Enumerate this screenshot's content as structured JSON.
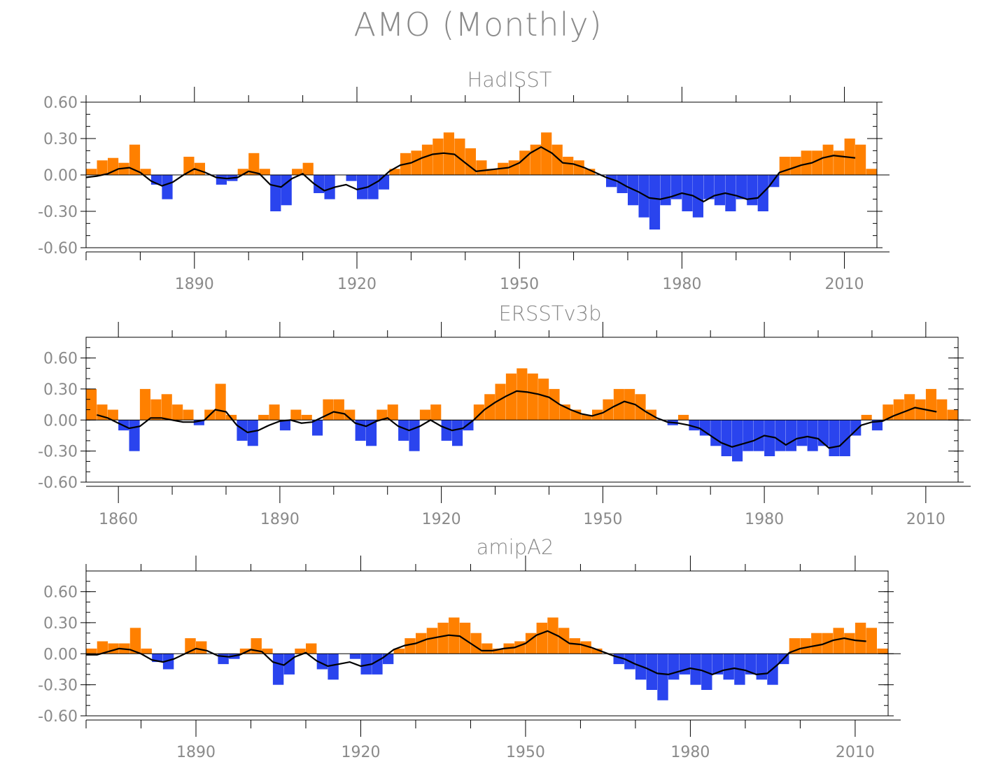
{
  "title": "AMO (Monthly)",
  "colors": {
    "positive": "#ff8000",
    "negative": "#2a44ee",
    "smooth": "#000000",
    "frame": "#000000",
    "text": "#8a8a8a"
  },
  "chart_data": [
    {
      "type": "bar",
      "title": "HadISST",
      "xlim": [
        1870,
        2016
      ],
      "ylim": [
        -0.6,
        0.6
      ],
      "yticks": [
        "0.60",
        "0.30",
        "0.00",
        "-0.30",
        "-0.60"
      ],
      "xticks": [
        "1890",
        "1920",
        "1950",
        "1980",
        "2010"
      ],
      "xtick_years": [
        1890,
        1920,
        1950,
        1980,
        2010
      ],
      "bar_series": {
        "name": "monthly AMO anomaly",
        "x": [
          1870,
          1872,
          1874,
          1876,
          1878,
          1880,
          1882,
          1884,
          1886,
          1888,
          1890,
          1892,
          1894,
          1896,
          1898,
          1900,
          1902,
          1904,
          1906,
          1908,
          1910,
          1912,
          1914,
          1916,
          1918,
          1920,
          1922,
          1924,
          1926,
          1928,
          1930,
          1932,
          1934,
          1936,
          1938,
          1940,
          1942,
          1944,
          1946,
          1948,
          1950,
          1952,
          1954,
          1956,
          1958,
          1960,
          1962,
          1964,
          1966,
          1968,
          1970,
          1972,
          1974,
          1976,
          1978,
          1980,
          1982,
          1984,
          1986,
          1988,
          1990,
          1992,
          1994,
          1996,
          1998,
          2000,
          2002,
          2004,
          2006,
          2008,
          2010,
          2012,
          2014
        ],
        "y": [
          0.05,
          0.12,
          0.14,
          0.1,
          0.25,
          0.05,
          -0.08,
          -0.2,
          0.0,
          0.15,
          0.1,
          0.0,
          -0.08,
          -0.05,
          0.05,
          0.18,
          0.05,
          -0.3,
          -0.25,
          0.05,
          0.1,
          -0.15,
          -0.2,
          0.0,
          -0.05,
          -0.2,
          -0.2,
          -0.12,
          0.05,
          0.18,
          0.2,
          0.25,
          0.3,
          0.35,
          0.3,
          0.22,
          0.12,
          0.05,
          0.1,
          0.12,
          0.2,
          0.25,
          0.35,
          0.25,
          0.15,
          0.12,
          0.05,
          0.0,
          -0.1,
          -0.15,
          -0.25,
          -0.35,
          -0.45,
          -0.25,
          -0.2,
          -0.3,
          -0.35,
          -0.2,
          -0.25,
          -0.3,
          -0.2,
          -0.25,
          -0.3,
          -0.1,
          0.15,
          0.15,
          0.2,
          0.2,
          0.25,
          0.2,
          0.3,
          0.25,
          0.05
        ]
      },
      "smooth_series": {
        "name": "smoothed",
        "x": [
          1870,
          1872,
          1874,
          1876,
          1878,
          1880,
          1882,
          1884,
          1886,
          1888,
          1890,
          1892,
          1894,
          1896,
          1898,
          1900,
          1902,
          1904,
          1906,
          1908,
          1910,
          1912,
          1914,
          1916,
          1918,
          1920,
          1922,
          1924,
          1926,
          1928,
          1930,
          1932,
          1934,
          1936,
          1938,
          1940,
          1942,
          1944,
          1946,
          1948,
          1950,
          1952,
          1954,
          1956,
          1958,
          1960,
          1962,
          1964,
          1966,
          1968,
          1970,
          1972,
          1974,
          1976,
          1978,
          1980,
          1982,
          1984,
          1986,
          1988,
          1990,
          1992,
          1994,
          1996,
          1998,
          2000,
          2002,
          2004,
          2006,
          2008,
          2010,
          2012
        ],
        "y": [
          -0.02,
          -0.01,
          0.01,
          0.05,
          0.06,
          0.02,
          -0.05,
          -0.09,
          -0.06,
          0.0,
          0.05,
          0.02,
          -0.02,
          -0.03,
          -0.02,
          0.03,
          0.01,
          -0.08,
          -0.1,
          -0.03,
          0.01,
          -0.07,
          -0.13,
          -0.1,
          -0.08,
          -0.12,
          -0.1,
          -0.05,
          0.03,
          0.08,
          0.1,
          0.14,
          0.17,
          0.18,
          0.17,
          0.1,
          0.03,
          0.04,
          0.05,
          0.06,
          0.1,
          0.18,
          0.23,
          0.18,
          0.1,
          0.09,
          0.06,
          0.02,
          -0.02,
          -0.05,
          -0.1,
          -0.14,
          -0.19,
          -0.2,
          -0.18,
          -0.15,
          -0.17,
          -0.22,
          -0.17,
          -0.15,
          -0.17,
          -0.2,
          -0.19,
          -0.1,
          0.02,
          0.05,
          0.08,
          0.1,
          0.14,
          0.16,
          0.15,
          0.14
        ]
      }
    },
    {
      "type": "bar",
      "title": "ERSSTv3b",
      "xlim": [
        1854,
        2016
      ],
      "ylim": [
        -0.6,
        0.8
      ],
      "yticks": [
        "0.60",
        "0.30",
        "0.00",
        "-0.30",
        "-0.60"
      ],
      "xticks": [
        "1860",
        "1890",
        "1920",
        "1950",
        "1980",
        "2010"
      ],
      "xtick_years": [
        1860,
        1890,
        1920,
        1950,
        1980,
        2010
      ],
      "bar_series": {
        "name": "monthly AMO anomaly",
        "x": [
          1854,
          1856,
          1858,
          1860,
          1862,
          1864,
          1866,
          1868,
          1870,
          1872,
          1874,
          1876,
          1878,
          1880,
          1882,
          1884,
          1886,
          1888,
          1890,
          1892,
          1894,
          1896,
          1898,
          1900,
          1902,
          1904,
          1906,
          1908,
          1910,
          1912,
          1914,
          1916,
          1918,
          1920,
          1922,
          1924,
          1926,
          1928,
          1930,
          1932,
          1934,
          1936,
          1938,
          1940,
          1942,
          1944,
          1946,
          1948,
          1950,
          1952,
          1954,
          1956,
          1958,
          1960,
          1962,
          1964,
          1966,
          1968,
          1970,
          1972,
          1974,
          1976,
          1978,
          1980,
          1982,
          1984,
          1986,
          1988,
          1990,
          1992,
          1994,
          1996,
          1998,
          2000,
          2002,
          2004,
          2006,
          2008,
          2010,
          2012,
          2014
        ],
        "y": [
          0.3,
          0.15,
          0.1,
          -0.1,
          -0.3,
          0.3,
          0.2,
          0.25,
          0.15,
          0.1,
          -0.05,
          0.1,
          0.35,
          0.05,
          -0.2,
          -0.25,
          0.05,
          0.15,
          -0.1,
          0.1,
          0.05,
          -0.15,
          0.2,
          0.2,
          0.1,
          -0.2,
          -0.25,
          0.1,
          0.15,
          -0.2,
          -0.3,
          0.1,
          0.15,
          -0.2,
          -0.25,
          -0.1,
          0.15,
          0.25,
          0.35,
          0.45,
          0.5,
          0.45,
          0.4,
          0.3,
          0.15,
          0.1,
          0.05,
          0.1,
          0.2,
          0.3,
          0.3,
          0.25,
          0.1,
          0.0,
          -0.05,
          0.05,
          -0.1,
          -0.15,
          -0.25,
          -0.35,
          -0.4,
          -0.3,
          -0.3,
          -0.35,
          -0.3,
          -0.3,
          -0.25,
          -0.3,
          -0.25,
          -0.35,
          -0.35,
          -0.15,
          0.05,
          -0.1,
          0.15,
          0.2,
          0.25,
          0.2,
          0.3,
          0.2,
          0.1
        ]
      },
      "smooth_series": {
        "name": "smoothed",
        "x": [
          1856,
          1858,
          1860,
          1862,
          1864,
          1866,
          1868,
          1870,
          1872,
          1874,
          1876,
          1878,
          1880,
          1882,
          1884,
          1886,
          1888,
          1890,
          1892,
          1894,
          1896,
          1898,
          1900,
          1902,
          1904,
          1906,
          1908,
          1910,
          1912,
          1914,
          1916,
          1918,
          1920,
          1922,
          1924,
          1926,
          1928,
          1930,
          1932,
          1934,
          1936,
          1938,
          1940,
          1942,
          1944,
          1946,
          1948,
          1950,
          1952,
          1954,
          1956,
          1958,
          1960,
          1962,
          1964,
          1966,
          1968,
          1970,
          1972,
          1974,
          1976,
          1978,
          1980,
          1982,
          1984,
          1986,
          1988,
          1990,
          1992,
          1994,
          1996,
          1998,
          2000,
          2002,
          2004,
          2006,
          2008,
          2010,
          2012
        ],
        "y": [
          0.05,
          0.02,
          -0.03,
          -0.08,
          -0.06,
          0.02,
          0.02,
          0.0,
          -0.02,
          -0.02,
          0.0,
          0.1,
          0.08,
          -0.05,
          -0.12,
          -0.1,
          -0.05,
          -0.01,
          0.0,
          -0.03,
          -0.02,
          0.03,
          0.08,
          0.06,
          -0.03,
          -0.06,
          -0.01,
          0.02,
          -0.06,
          -0.1,
          -0.06,
          0.0,
          -0.06,
          -0.1,
          -0.08,
          0.0,
          0.1,
          0.17,
          0.23,
          0.28,
          0.27,
          0.25,
          0.22,
          0.15,
          0.1,
          0.06,
          0.04,
          0.07,
          0.13,
          0.18,
          0.15,
          0.08,
          0.02,
          -0.02,
          -0.03,
          -0.05,
          -0.08,
          -0.15,
          -0.22,
          -0.26,
          -0.23,
          -0.2,
          -0.15,
          -0.17,
          -0.24,
          -0.18,
          -0.16,
          -0.18,
          -0.27,
          -0.25,
          -0.15,
          -0.05,
          -0.02,
          -0.01,
          0.04,
          0.08,
          0.12,
          0.1,
          0.08
        ]
      }
    },
    {
      "type": "bar",
      "title": "amipA2",
      "xlim": [
        1870,
        2016
      ],
      "ylim": [
        -0.6,
        0.8
      ],
      "yticks": [
        "0.60",
        "0.30",
        "0.00",
        "-0.30",
        "-0.60"
      ],
      "xticks": [
        "1890",
        "1920",
        "1950",
        "1980",
        "2010"
      ],
      "xtick_years": [
        1890,
        1920,
        1950,
        1980,
        2010
      ],
      "bar_series": {
        "name": "monthly AMO anomaly",
        "x": [
          1870,
          1872,
          1874,
          1876,
          1878,
          1880,
          1882,
          1884,
          1886,
          1888,
          1890,
          1892,
          1894,
          1896,
          1898,
          1900,
          1902,
          1904,
          1906,
          1908,
          1910,
          1912,
          1914,
          1916,
          1918,
          1920,
          1922,
          1924,
          1926,
          1928,
          1930,
          1932,
          1934,
          1936,
          1938,
          1940,
          1942,
          1944,
          1946,
          1948,
          1950,
          1952,
          1954,
          1956,
          1958,
          1960,
          1962,
          1964,
          1966,
          1968,
          1970,
          1972,
          1974,
          1976,
          1978,
          1980,
          1982,
          1984,
          1986,
          1988,
          1990,
          1992,
          1994,
          1996,
          1998,
          2000,
          2002,
          2004,
          2006,
          2008,
          2010,
          2012,
          2014
        ],
        "y": [
          0.05,
          0.12,
          0.1,
          0.1,
          0.25,
          0.05,
          -0.08,
          -0.15,
          0.0,
          0.15,
          0.12,
          0.0,
          -0.1,
          -0.05,
          0.05,
          0.15,
          0.05,
          -0.3,
          -0.2,
          0.05,
          0.1,
          -0.15,
          -0.25,
          0.0,
          -0.05,
          -0.2,
          -0.2,
          -0.1,
          0.05,
          0.15,
          0.2,
          0.25,
          0.3,
          0.35,
          0.3,
          0.2,
          0.1,
          0.05,
          0.1,
          0.12,
          0.2,
          0.3,
          0.35,
          0.25,
          0.15,
          0.12,
          0.05,
          0.0,
          -0.1,
          -0.15,
          -0.25,
          -0.35,
          -0.45,
          -0.25,
          -0.2,
          -0.3,
          -0.35,
          -0.2,
          -0.25,
          -0.3,
          -0.2,
          -0.25,
          -0.3,
          -0.1,
          0.15,
          0.15,
          0.2,
          0.2,
          0.25,
          0.2,
          0.3,
          0.25,
          0.05
        ]
      },
      "smooth_series": {
        "name": "smoothed",
        "x": [
          1870,
          1872,
          1874,
          1876,
          1878,
          1880,
          1882,
          1884,
          1886,
          1888,
          1890,
          1892,
          1894,
          1896,
          1898,
          1900,
          1902,
          1904,
          1906,
          1908,
          1910,
          1912,
          1914,
          1916,
          1918,
          1920,
          1922,
          1924,
          1926,
          1928,
          1930,
          1932,
          1934,
          1936,
          1938,
          1940,
          1942,
          1944,
          1946,
          1948,
          1950,
          1952,
          1954,
          1956,
          1958,
          1960,
          1962,
          1964,
          1966,
          1968,
          1970,
          1972,
          1974,
          1976,
          1978,
          1980,
          1982,
          1984,
          1986,
          1988,
          1990,
          1992,
          1994,
          1996,
          1998,
          2000,
          2002,
          2004,
          2006,
          2008,
          2010,
          2012
        ],
        "y": [
          -0.01,
          -0.01,
          0.02,
          0.05,
          0.04,
          0.0,
          -0.06,
          -0.08,
          -0.05,
          0.0,
          0.05,
          0.03,
          -0.02,
          -0.03,
          -0.01,
          0.04,
          0.02,
          -0.08,
          -0.11,
          -0.03,
          0.01,
          -0.07,
          -0.12,
          -0.1,
          -0.08,
          -0.12,
          -0.1,
          -0.04,
          0.04,
          0.08,
          0.1,
          0.14,
          0.16,
          0.18,
          0.17,
          0.1,
          0.03,
          0.03,
          0.05,
          0.06,
          0.1,
          0.18,
          0.22,
          0.17,
          0.1,
          0.09,
          0.06,
          0.02,
          -0.02,
          -0.05,
          -0.1,
          -0.14,
          -0.19,
          -0.2,
          -0.17,
          -0.14,
          -0.16,
          -0.2,
          -0.16,
          -0.14,
          -0.16,
          -0.2,
          -0.19,
          -0.1,
          0.01,
          0.05,
          0.07,
          0.09,
          0.13,
          0.15,
          0.13,
          0.12
        ]
      }
    }
  ]
}
